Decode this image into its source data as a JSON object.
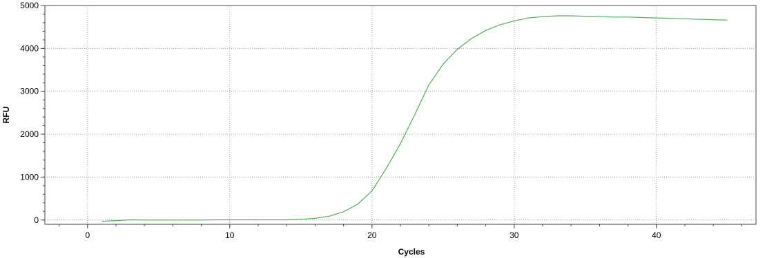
{
  "chart_data": {
    "type": "line",
    "title": "",
    "xlabel": "Cycles",
    "ylabel": "RFU",
    "xlim": [
      -3,
      47
    ],
    "ylim": [
      -100,
      5000
    ],
    "x_ticks": [
      0,
      10,
      20,
      30,
      40
    ],
    "y_ticks": [
      0,
      1000,
      2000,
      3000,
      4000,
      5000
    ],
    "grid": true,
    "legend": "none",
    "series": [
      {
        "color": "#4caf50",
        "x": [
          1,
          2,
          3,
          4,
          5,
          6,
          7,
          8,
          9,
          10,
          11,
          12,
          13,
          14,
          15,
          16,
          17,
          18,
          19,
          20,
          21,
          22,
          23,
          24,
          25,
          26,
          27,
          28,
          29,
          30,
          31,
          32,
          33,
          34,
          35,
          36,
          37,
          38,
          39,
          40,
          41,
          42,
          43,
          44,
          45
        ],
        "y": [
          -30,
          -15,
          5,
          0,
          0,
          0,
          0,
          0,
          5,
          5,
          5,
          5,
          5,
          5,
          15,
          40,
          90,
          190,
          370,
          680,
          1200,
          1780,
          2450,
          3150,
          3630,
          3980,
          4230,
          4420,
          4550,
          4640,
          4710,
          4740,
          4760,
          4760,
          4750,
          4740,
          4730,
          4730,
          4720,
          4710,
          4700,
          4690,
          4680,
          4670,
          4660
        ]
      }
    ]
  }
}
